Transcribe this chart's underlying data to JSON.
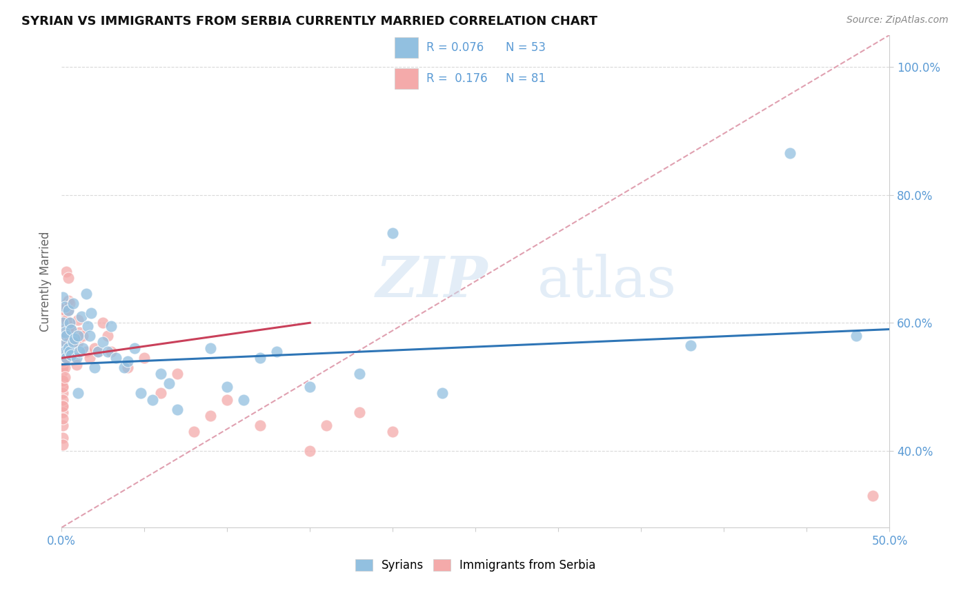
{
  "title": "SYRIAN VS IMMIGRANTS FROM SERBIA CURRENTLY MARRIED CORRELATION CHART",
  "source": "Source: ZipAtlas.com",
  "xlabel_blue": "Syrians",
  "xlabel_pink": "Immigrants from Serbia",
  "ylabel": "Currently Married",
  "xlim": [
    0.0,
    0.5
  ],
  "ylim": [
    0.28,
    1.05
  ],
  "xticks": [
    0.0,
    0.05,
    0.1,
    0.15,
    0.2,
    0.25,
    0.3,
    0.35,
    0.4,
    0.45,
    0.5
  ],
  "yticks": [
    0.4,
    0.6,
    0.8,
    1.0
  ],
  "ytick_labels": [
    "40.0%",
    "60.0%",
    "80.0%",
    "100.0%"
  ],
  "R_blue": 0.076,
  "N_blue": 53,
  "R_pink": 0.176,
  "N_pink": 81,
  "blue_color": "#92C0E0",
  "pink_color": "#F4AAAA",
  "trend_blue": "#2E75B6",
  "trend_pink": "#C9405A",
  "trend_dashed_color": "#E0A0B0",
  "blue_scatter_x": [
    0.001,
    0.001,
    0.001,
    0.002,
    0.002,
    0.002,
    0.003,
    0.003,
    0.004,
    0.004,
    0.005,
    0.005,
    0.006,
    0.006,
    0.007,
    0.007,
    0.008,
    0.009,
    0.01,
    0.01,
    0.011,
    0.012,
    0.013,
    0.015,
    0.016,
    0.017,
    0.018,
    0.02,
    0.022,
    0.025,
    0.028,
    0.03,
    0.033,
    0.038,
    0.04,
    0.044,
    0.048,
    0.055,
    0.06,
    0.065,
    0.07,
    0.09,
    0.1,
    0.11,
    0.12,
    0.13,
    0.15,
    0.18,
    0.2,
    0.23,
    0.38,
    0.44,
    0.48
  ],
  "blue_scatter_y": [
    0.565,
    0.6,
    0.64,
    0.555,
    0.585,
    0.625,
    0.545,
    0.58,
    0.56,
    0.62,
    0.555,
    0.6,
    0.55,
    0.59,
    0.57,
    0.63,
    0.575,
    0.545,
    0.58,
    0.49,
    0.555,
    0.61,
    0.56,
    0.645,
    0.595,
    0.58,
    0.615,
    0.53,
    0.555,
    0.57,
    0.555,
    0.595,
    0.545,
    0.53,
    0.54,
    0.56,
    0.49,
    0.48,
    0.52,
    0.505,
    0.465,
    0.56,
    0.5,
    0.48,
    0.545,
    0.555,
    0.5,
    0.52,
    0.74,
    0.49,
    0.565,
    0.865,
    0.58
  ],
  "pink_scatter_x": [
    0.001,
    0.001,
    0.001,
    0.001,
    0.001,
    0.001,
    0.001,
    0.001,
    0.001,
    0.001,
    0.001,
    0.001,
    0.001,
    0.001,
    0.001,
    0.001,
    0.001,
    0.001,
    0.001,
    0.001,
    0.001,
    0.001,
    0.001,
    0.001,
    0.001,
    0.002,
    0.002,
    0.002,
    0.002,
    0.002,
    0.002,
    0.002,
    0.002,
    0.002,
    0.003,
    0.003,
    0.003,
    0.003,
    0.003,
    0.003,
    0.003,
    0.004,
    0.004,
    0.004,
    0.004,
    0.004,
    0.005,
    0.005,
    0.005,
    0.005,
    0.006,
    0.006,
    0.007,
    0.007,
    0.008,
    0.008,
    0.009,
    0.01,
    0.01,
    0.011,
    0.013,
    0.015,
    0.017,
    0.02,
    0.022,
    0.025,
    0.028,
    0.03,
    0.04,
    0.05,
    0.06,
    0.07,
    0.08,
    0.09,
    0.1,
    0.12,
    0.15,
    0.16,
    0.18,
    0.2,
    0.49
  ],
  "pink_scatter_y": [
    0.565,
    0.545,
    0.58,
    0.555,
    0.535,
    0.57,
    0.51,
    0.55,
    0.59,
    0.525,
    0.5,
    0.53,
    0.56,
    0.49,
    0.47,
    0.51,
    0.54,
    0.48,
    0.46,
    0.5,
    0.44,
    0.47,
    0.42,
    0.45,
    0.41,
    0.59,
    0.56,
    0.53,
    0.61,
    0.58,
    0.545,
    0.515,
    0.57,
    0.62,
    0.57,
    0.605,
    0.545,
    0.63,
    0.58,
    0.625,
    0.68,
    0.57,
    0.62,
    0.59,
    0.635,
    0.67,
    0.56,
    0.595,
    0.63,
    0.6,
    0.565,
    0.59,
    0.555,
    0.57,
    0.545,
    0.57,
    0.535,
    0.57,
    0.605,
    0.585,
    0.58,
    0.555,
    0.545,
    0.56,
    0.555,
    0.6,
    0.58,
    0.555,
    0.53,
    0.545,
    0.49,
    0.52,
    0.43,
    0.455,
    0.48,
    0.44,
    0.4,
    0.44,
    0.46,
    0.43,
    0.33
  ]
}
